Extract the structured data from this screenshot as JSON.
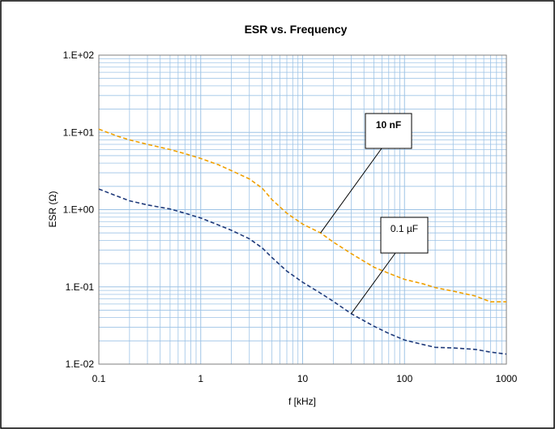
{
  "chart_data": {
    "type": "line",
    "title": "ESR vs. Frequency",
    "xlabel": "f [kHz]",
    "ylabel": "ESR (Ω)",
    "x_scale": "log",
    "y_scale": "log",
    "xlim": [
      0.1,
      1000
    ],
    "ylim": [
      0.01,
      100
    ],
    "grid": true,
    "x_tick_labels": [
      "0.1",
      "1",
      "10",
      "100",
      "1000"
    ],
    "y_tick_labels": [
      "1.E-02",
      "1.E-01",
      "1.E+00",
      "1.E+01",
      "1.E+02"
    ],
    "series": [
      {
        "name": "10 nF",
        "color": "#f0a000",
        "line_style": "dashed",
        "points": [
          [
            0.1,
            11.0
          ],
          [
            0.15,
            9.0
          ],
          [
            0.2,
            8.0
          ],
          [
            0.3,
            7.0
          ],
          [
            0.5,
            6.0
          ],
          [
            0.7,
            5.3
          ],
          [
            1,
            4.6
          ],
          [
            1.5,
            3.8
          ],
          [
            2,
            3.2
          ],
          [
            3,
            2.5
          ],
          [
            4,
            1.9
          ],
          [
            5,
            1.35
          ],
          [
            7,
            0.9
          ],
          [
            10,
            0.65
          ],
          [
            15,
            0.5
          ],
          [
            20,
            0.38
          ],
          [
            30,
            0.27
          ],
          [
            50,
            0.18
          ],
          [
            70,
            0.15
          ],
          [
            100,
            0.125
          ],
          [
            150,
            0.11
          ],
          [
            200,
            0.098
          ],
          [
            300,
            0.088
          ],
          [
            500,
            0.076
          ],
          [
            700,
            0.064
          ],
          [
            1000,
            0.064
          ]
        ]
      },
      {
        "name": "0.1 µF",
        "color": "#1f3a7a",
        "line_style": "dashed",
        "points": [
          [
            0.1,
            1.85
          ],
          [
            0.15,
            1.5
          ],
          [
            0.2,
            1.3
          ],
          [
            0.3,
            1.15
          ],
          [
            0.5,
            1.02
          ],
          [
            0.7,
            0.9
          ],
          [
            1,
            0.78
          ],
          [
            1.5,
            0.63
          ],
          [
            2,
            0.54
          ],
          [
            3,
            0.42
          ],
          [
            4,
            0.32
          ],
          [
            5,
            0.24
          ],
          [
            7,
            0.16
          ],
          [
            10,
            0.115
          ],
          [
            15,
            0.083
          ],
          [
            20,
            0.065
          ],
          [
            30,
            0.045
          ],
          [
            50,
            0.031
          ],
          [
            70,
            0.025
          ],
          [
            100,
            0.0205
          ],
          [
            150,
            0.018
          ],
          [
            200,
            0.0165
          ],
          [
            300,
            0.0162
          ],
          [
            500,
            0.0155
          ],
          [
            700,
            0.0143
          ],
          [
            1000,
            0.0135
          ]
        ]
      }
    ],
    "annotations": [
      {
        "text": "10 nF",
        "bold": true,
        "point": [
          15,
          0.5
        ]
      },
      {
        "text": "0.1 µF",
        "bold": false,
        "point": [
          30,
          0.045
        ]
      }
    ]
  }
}
